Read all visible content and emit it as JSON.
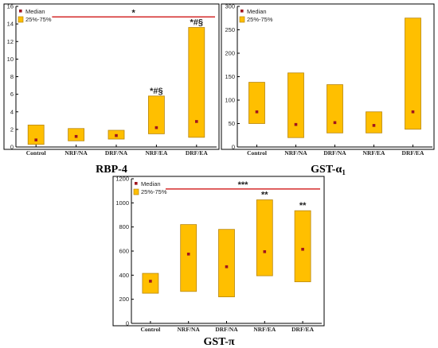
{
  "colors": {
    "box_fill": "#ffbf00",
    "box_stroke": "#b8860b",
    "median": "#a0141e",
    "sig_line": "#cc0000"
  },
  "chart_data": [
    {
      "type": "box",
      "title": "RBP-4",
      "categories": [
        "Control",
        "NRF/NA",
        "DRF/NA",
        "NRF/EA",
        "DRF/EA"
      ],
      "q1": [
        0.3,
        0.7,
        0.9,
        1.5,
        1.1
      ],
      "median": [
        0.8,
        1.2,
        1.3,
        2.2,
        2.9
      ],
      "q3": [
        2.5,
        2.1,
        1.9,
        5.8,
        13.6
      ],
      "ylim": [
        0,
        16
      ],
      "yticks": [
        0,
        2,
        4,
        6,
        8,
        10,
        12,
        14,
        16
      ],
      "legend": [
        "Median",
        "25%-75%"
      ],
      "legend_position": "top-left",
      "annotations": [
        "",
        "",
        "",
        "*#§",
        "*#§"
      ],
      "sig_line": {
        "y": 14.8,
        "label": "*"
      }
    },
    {
      "type": "box",
      "title": "GST-α",
      "title_sub": "1",
      "categories": [
        "Control",
        "NRF/NA",
        "DRF/NA",
        "NRF/EA",
        "DRF/EA"
      ],
      "q1": [
        50,
        20,
        30,
        30,
        38
      ],
      "median": [
        75,
        48,
        52,
        46,
        75
      ],
      "q3": [
        138,
        158,
        133,
        75,
        275
      ],
      "ylim": [
        0,
        300
      ],
      "yticks": [
        0,
        50,
        100,
        150,
        200,
        250,
        300
      ],
      "legend": [
        "Median",
        "25%-75%"
      ],
      "legend_position": "top-left",
      "annotations": [
        "",
        "",
        "",
        "",
        ""
      ],
      "sig_line": null
    },
    {
      "type": "box",
      "title": "GST-π",
      "categories": [
        "Control",
        "NRF/NA",
        "DRF/NA",
        "NRF/EA",
        "DRF/EA"
      ],
      "q1": [
        250,
        265,
        220,
        395,
        345
      ],
      "median": [
        350,
        575,
        470,
        595,
        615
      ],
      "q3": [
        415,
        820,
        780,
        1025,
        935
      ],
      "ylim": [
        0,
        1200
      ],
      "yticks": [
        0,
        200,
        400,
        600,
        800,
        1000,
        1200
      ],
      "legend": [
        "Median",
        "25%-75%"
      ],
      "legend_position": "top-left",
      "annotations": [
        "",
        "",
        "",
        "**",
        "**"
      ],
      "sig_line": {
        "y": 1115,
        "label": "***"
      }
    }
  ]
}
